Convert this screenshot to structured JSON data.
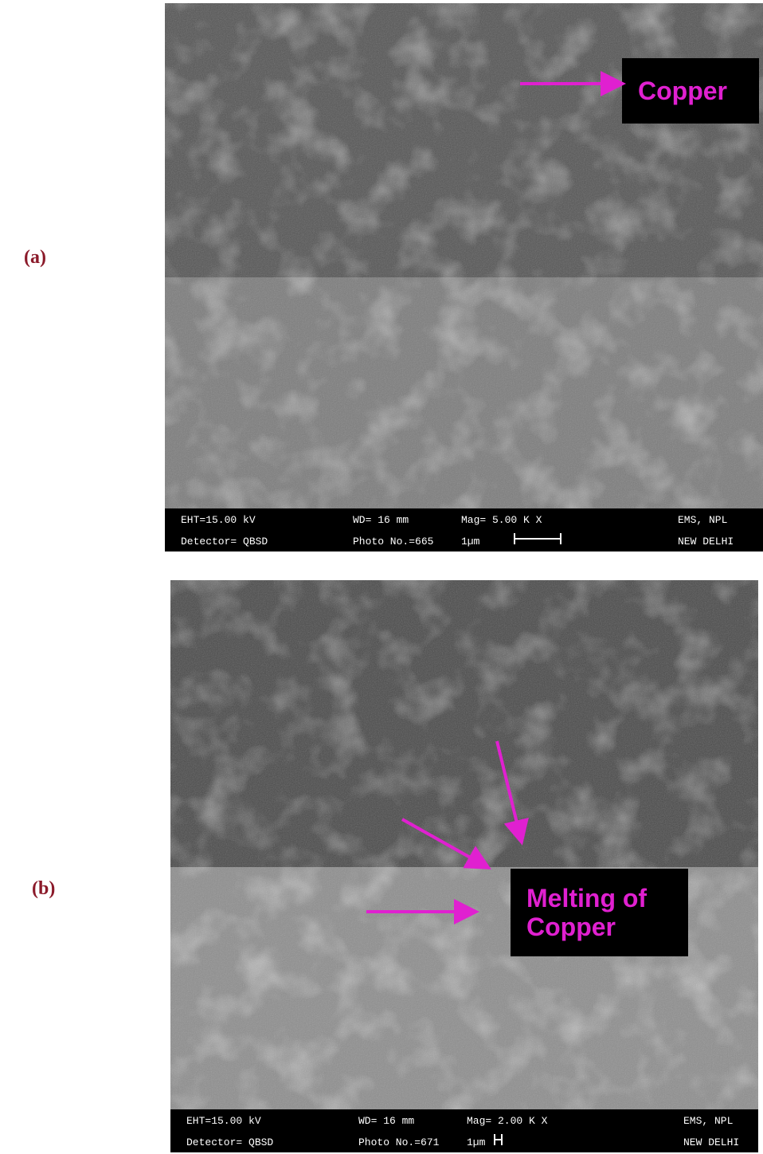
{
  "panels": [
    {
      "label": "(a)",
      "annotation": [
        "Copper"
      ],
      "info_bar": [
        [
          "EHT=15.00 kV",
          "WD= 16 mm",
          "Mag= 5.00 K X",
          "EMS, NPL"
        ],
        [
          "Detector= QBSD",
          "Photo No.=665",
          "1µm",
          "NEW DELHI"
        ]
      ]
    },
    {
      "label": "(b)",
      "annotation": [
        "Melting of",
        "Copper"
      ],
      "info_bar": [
        [
          "EHT=15.00 kV",
          "WD= 16 mm",
          "Mag= 2.00 K X",
          "EMS, NPL"
        ],
        [
          "Detector= QBSD",
          "Photo No.=671",
          "1µm",
          "NEW DELHI"
        ]
      ]
    }
  ]
}
